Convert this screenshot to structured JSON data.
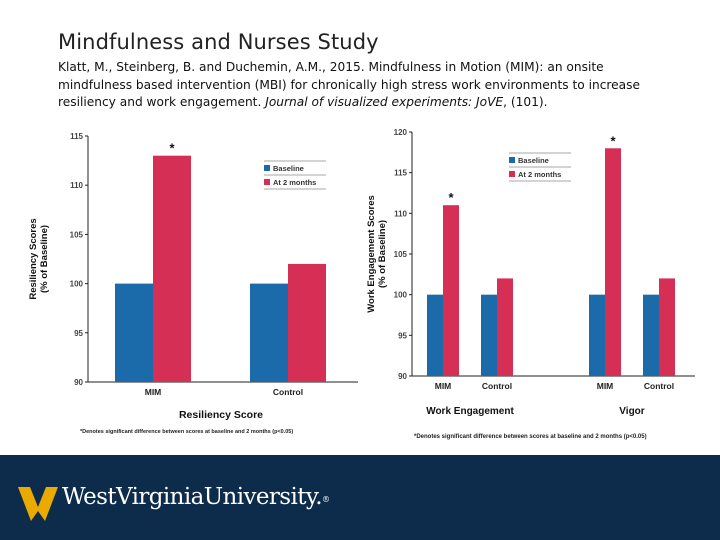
{
  "slide": {
    "title": "Mindfulness and Nurses Study",
    "citation_main": "Klatt, M., Steinberg, B. and Duchemin, A.M., 2015. Mindfulness in Motion (MIM): an onsite mindfulness based intervention (MBI) for chronically high stress work environments to increase resiliency and work engagement. ",
    "citation_journal": "Journal of visualized experiments: JoVE",
    "citation_end": ", (101)."
  },
  "footer": {
    "university_name": "WestVirginiaUniversity.",
    "logo_icon": "wv-flying-logo-icon",
    "background_color": "#0d2b4b",
    "logo_color": "#eaaa00"
  },
  "colors": {
    "baseline": "#1b6bab",
    "at_2_months": "#d62f55"
  },
  "chart_data": [
    {
      "type": "bar",
      "categories": [
        "MIM",
        "Control"
      ],
      "series": [
        {
          "name": "Baseline",
          "values": [
            100,
            100
          ]
        },
        {
          "name": "At 2 months",
          "values": [
            113,
            102
          ]
        }
      ],
      "ylim": [
        90,
        115
      ],
      "yticks": [
        90,
        95,
        100,
        105,
        110,
        115
      ],
      "ylabel_lines": [
        "Resiliency Scores",
        "(% of Baseline)"
      ],
      "xlabel": "Resiliency Score",
      "significance_markers": [
        {
          "category": "MIM",
          "series": "At 2 months",
          "text": "*"
        }
      ],
      "footnote": "*Denotes significant difference between scores at baseline and 2 months (p<0.05)",
      "legend": "top-right",
      "grid": false
    },
    {
      "type": "bar",
      "groups": [
        {
          "label": "Work Engagement",
          "categories": [
            "MIM",
            "Control"
          ]
        },
        {
          "label": "Vigor",
          "categories": [
            "MIM",
            "Control"
          ]
        }
      ],
      "series": [
        {
          "name": "Baseline",
          "values": [
            100,
            100,
            100,
            100
          ]
        },
        {
          "name": "At 2 months",
          "values": [
            111,
            102,
            118,
            102
          ]
        }
      ],
      "ylim": [
        90,
        120
      ],
      "yticks": [
        90,
        95,
        100,
        105,
        110,
        115,
        120
      ],
      "ylabel_lines": [
        "Work Engagement Scores",
        "(% of Baseline)"
      ],
      "significance_markers": [
        {
          "group": "Work Engagement",
          "category": "MIM",
          "series": "At 2 months",
          "text": "*"
        },
        {
          "group": "Vigor",
          "category": "MIM",
          "series": "At 2 months",
          "text": "*"
        }
      ],
      "footnote": "*Denotes significant difference between scores at baseline and 2 months (p<0.05)",
      "legend": "top-center",
      "grid": false
    }
  ]
}
